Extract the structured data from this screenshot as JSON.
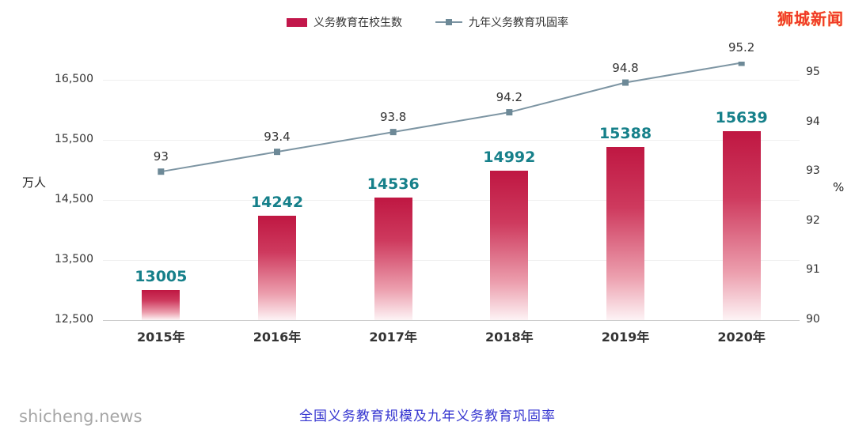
{
  "watermark_brand": "狮城新闻",
  "watermark_site": "shicheng.news",
  "caption": "全国义务教育规模及九年义务教育巩固率",
  "legend": [
    {
      "label": "义务教育在校生数",
      "type": "bar",
      "color": "#c2174b"
    },
    {
      "label": "九年义务教育巩固率",
      "type": "line",
      "color": "#7d95a3"
    }
  ],
  "chart_data": {
    "type": "bar+line",
    "title": "全国义务教育规模及九年义务教育巩固率",
    "categories": [
      "2015年",
      "2016年",
      "2017年",
      "2018年",
      "2019年",
      "2020年"
    ],
    "series": [
      {
        "name": "义务教育在校生数",
        "type": "bar",
        "axis": "left",
        "values": [
          13005,
          14242,
          14536,
          14992,
          15388,
          15639
        ],
        "color": "#c2174b",
        "label_color": "#16808a"
      },
      {
        "name": "九年义务教育巩固率",
        "type": "line",
        "axis": "right",
        "values": [
          93,
          93.4,
          93.8,
          94.2,
          94.8,
          95.2
        ],
        "color": "#7d95a3",
        "marker_color": "#6d8997",
        "label_color": "#333333"
      }
    ],
    "left_axis": {
      "label": "万人",
      "min": 12500,
      "max": 16500,
      "ticks": [
        {
          "label": "16,500",
          "value": 16500
        },
        {
          "label": "15,500",
          "value": 15500
        },
        {
          "label": "14,500",
          "value": 14500
        },
        {
          "label": "13,500",
          "value": 13500
        },
        {
          "label": "12,500",
          "value": 12500
        }
      ]
    },
    "right_axis": {
      "label": "%",
      "min": 90,
      "max": 95,
      "ticks": [
        {
          "label": "95",
          "value": 95
        },
        {
          "label": "94",
          "value": 94
        },
        {
          "label": "93",
          "value": 93
        },
        {
          "label": "92",
          "value": 92
        },
        {
          "label": "91",
          "value": 91
        },
        {
          "label": "90",
          "value": 90
        }
      ]
    },
    "grid": true,
    "legend_position": "top"
  }
}
